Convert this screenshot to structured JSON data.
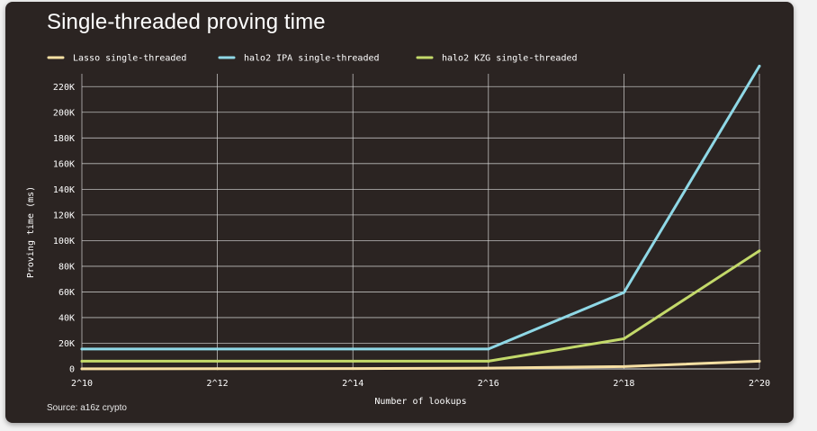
{
  "title": "Single-threaded proving time",
  "source": "Source: a16z crypto",
  "colors": {
    "background": "#2b2422",
    "grid": "#d8d8d8",
    "text": "#ffffff"
  },
  "chart_data": {
    "type": "line",
    "title": "Single-threaded proving time",
    "xlabel": "Number of lookups",
    "ylabel": "Proving time (ms)",
    "categories": [
      "2^10",
      "2^12",
      "2^14",
      "2^16",
      "2^18",
      "2^20"
    ],
    "ylim": [
      0,
      230000
    ],
    "yticks": [
      0,
      20000,
      40000,
      60000,
      80000,
      100000,
      120000,
      140000,
      160000,
      180000,
      200000,
      220000
    ],
    "ytick_labels": [
      "0",
      "20K",
      "40K",
      "60K",
      "80K",
      "100K",
      "120K",
      "140K",
      "160K",
      "180K",
      "200K",
      "220K"
    ],
    "grid": true,
    "legend_position": "top",
    "series": [
      {
        "name": "Lasso single-threaded",
        "color": "#f7e0a3",
        "values": [
          100,
          150,
          300,
          600,
          1800,
          6000
        ]
      },
      {
        "name": "halo2 IPA single-threaded",
        "color": "#8fd8e6",
        "values": [
          15500,
          15500,
          15500,
          15500,
          59500,
          236000
        ]
      },
      {
        "name": "halo2 KZG single-threaded",
        "color": "#c3d96a",
        "values": [
          6000,
          6000,
          6000,
          6000,
          23500,
          92000
        ]
      }
    ]
  }
}
